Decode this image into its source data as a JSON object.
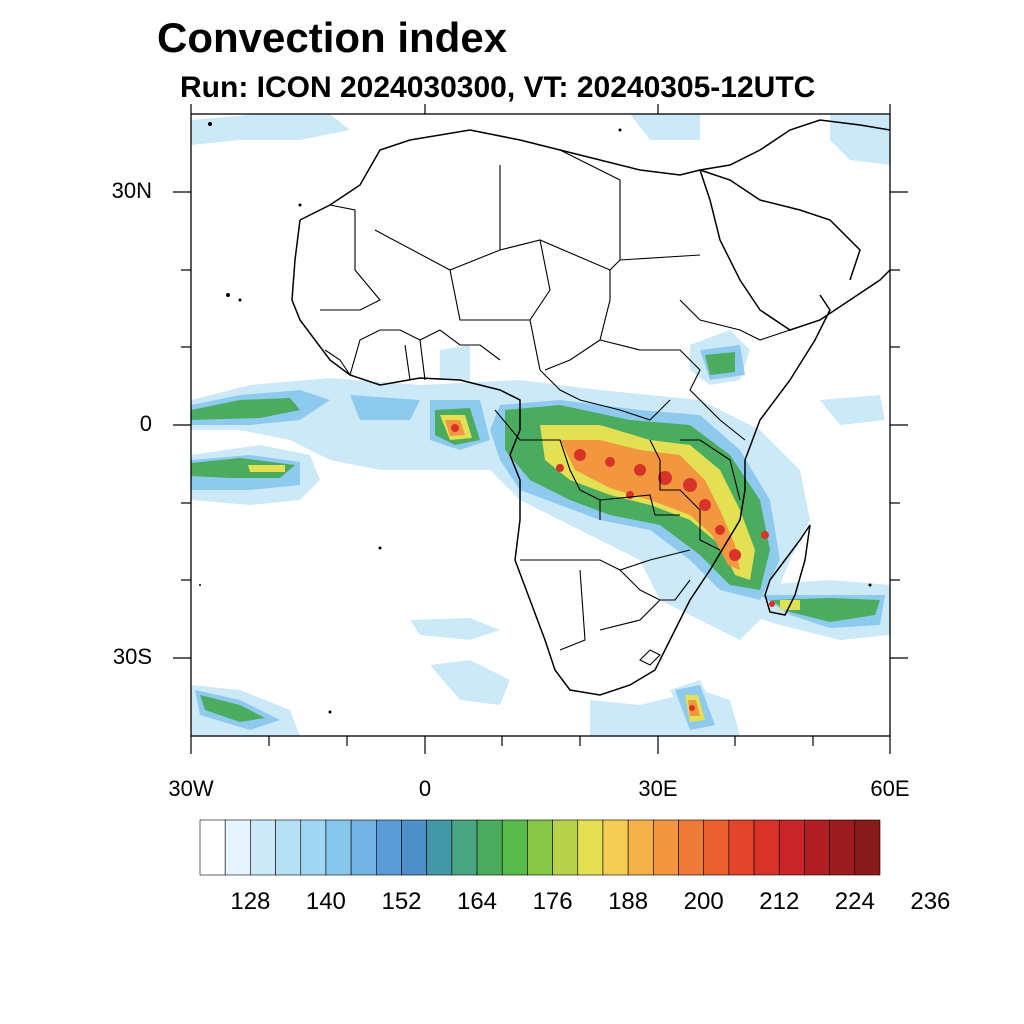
{
  "header": {
    "title": "Convection index",
    "subtitle": "Run: ICON 2024030300,  VT: 20240305-12UTC"
  },
  "map": {
    "lon_range": [
      -30,
      60
    ],
    "lat_range": [
      -40,
      40
    ],
    "y_tick_labels": [
      "30N",
      "0",
      "30S"
    ],
    "x_tick_labels": [
      "30W",
      "0",
      "30E",
      "60E"
    ]
  },
  "colorbar": {
    "colors": [
      "#ffffff",
      "#e6f5fd",
      "#cce9f8",
      "#b6e0f6",
      "#9fd6f3",
      "#88c7ec",
      "#72b3e3",
      "#5b9cd6",
      "#4f8fc9",
      "#4497a6",
      "#49a582",
      "#4bab5e",
      "#5ab94b",
      "#88c646",
      "#b8d24c",
      "#e3e053",
      "#f5cd54",
      "#f5b24a",
      "#f29640",
      "#ee7a37",
      "#e95f30",
      "#e2452b",
      "#d83329",
      "#c92528",
      "#b01e24",
      "#9b1c1f",
      "#871b1b"
    ],
    "tick_labels": [
      "128",
      "140",
      "152",
      "164",
      "176",
      "188",
      "200",
      "212",
      "224",
      "236"
    ]
  }
}
